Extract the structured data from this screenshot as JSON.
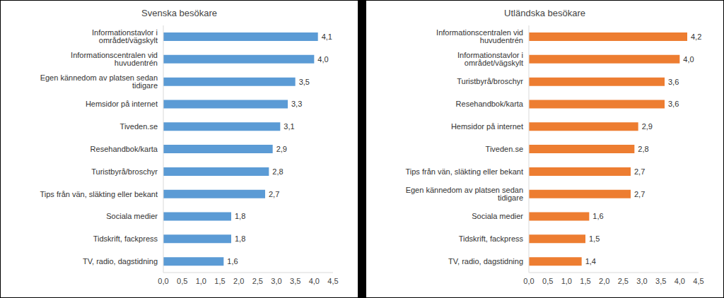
{
  "chart_data": [
    {
      "type": "bar",
      "title": "Svenska besökare",
      "orientation": "horizontal",
      "data_labels": true,
      "grid": false,
      "color": "#5b9bd5",
      "categories": [
        "Informationstavlor i området/vägskylt",
        "Informationscentralen vid huvudentrén",
        "Egen kännedom av platsen sedan tidigare",
        "Hemsidor på internet",
        "Tiveden.se",
        "Resehandbok/karta",
        "Turistbyrå/broschyr",
        "Tips från vän, släkting eller bekant",
        "Sociala medier",
        "Tidskrift, fackpress",
        "TV, radio, dagstidning"
      ],
      "values": [
        4.1,
        4.0,
        3.5,
        3.3,
        3.1,
        2.9,
        2.8,
        2.7,
        1.8,
        1.8,
        1.6
      ],
      "value_labels": [
        "4,1",
        "4,0",
        "3,5",
        "3,3",
        "3,1",
        "2,9",
        "2,8",
        "2,7",
        "1,8",
        "1,8",
        "1,6"
      ],
      "xlim": [
        0,
        4.5
      ],
      "xticks": [
        {
          "value": 0,
          "label": "0,0"
        },
        {
          "value": 0.5,
          "label": "0,5"
        },
        {
          "value": 1,
          "label": "1,0"
        },
        {
          "value": 1.5,
          "label": "1,5"
        },
        {
          "value": 2,
          "label": "2,0"
        },
        {
          "value": 2.5,
          "label": "2,5"
        },
        {
          "value": 3,
          "label": "3,0"
        },
        {
          "value": 3.5,
          "label": "3,5"
        },
        {
          "value": 4,
          "label": "4,0"
        },
        {
          "value": 4.5,
          "label": "4,5"
        }
      ]
    },
    {
      "type": "bar",
      "title": "Utländska besökare",
      "orientation": "horizontal",
      "data_labels": true,
      "grid": false,
      "color": "#ed7d31",
      "categories": [
        "Informationscentralen vid huvudentrén",
        "Informationstavlor i området/vägskylt",
        "Turistbyrå/broschyr",
        "Resehandbok/karta",
        "Hemsidor på internet",
        "Tiveden.se",
        "Tips från vän, släkting eller bekant",
        "Egen kännedom av platsen sedan tidigare",
        "Sociala medier",
        "Tidskrift, fackpress",
        "TV, radio, dagstidning"
      ],
      "values": [
        4.2,
        4.0,
        3.6,
        3.6,
        2.9,
        2.8,
        2.7,
        2.7,
        1.6,
        1.5,
        1.4
      ],
      "value_labels": [
        "4,2",
        "4,0",
        "3,6",
        "3,6",
        "2,9",
        "2,8",
        "2,7",
        "2,7",
        "1,6",
        "1,5",
        "1,4"
      ],
      "xlim": [
        0,
        4.5
      ],
      "xticks": [
        {
          "value": 0,
          "label": "0,0"
        },
        {
          "value": 0.5,
          "label": "0,5"
        },
        {
          "value": 1,
          "label": "1,0"
        },
        {
          "value": 1.5,
          "label": "1,5"
        },
        {
          "value": 2,
          "label": "2,0"
        },
        {
          "value": 2.5,
          "label": "2,5"
        },
        {
          "value": 3,
          "label": "3,0"
        },
        {
          "value": 3.5,
          "label": "3,5"
        },
        {
          "value": 4,
          "label": "4,0"
        },
        {
          "value": 4.5,
          "label": "4,5"
        }
      ]
    }
  ]
}
